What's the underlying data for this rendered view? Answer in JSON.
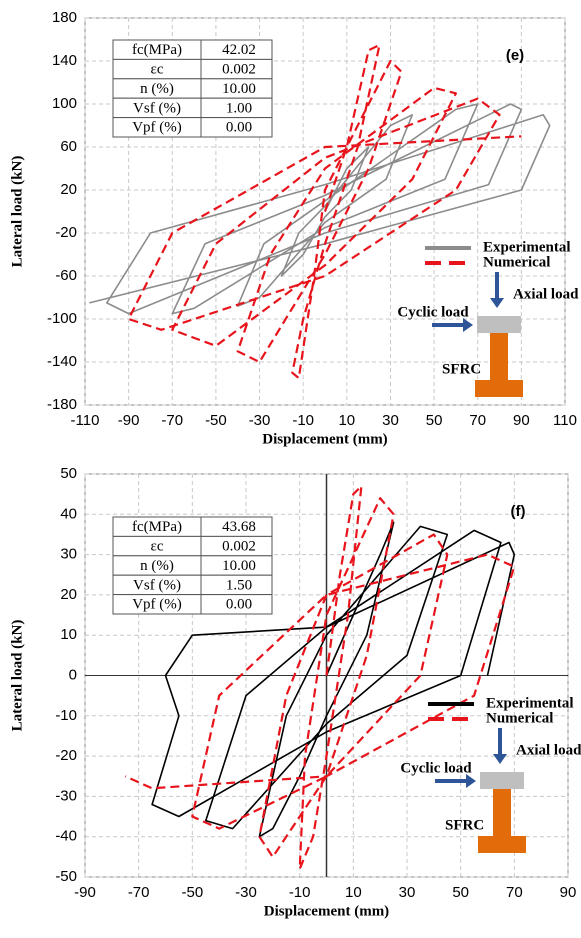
{
  "chart_data": [
    {
      "type": "line",
      "annotation": "(e)",
      "xlabel": "Displacement (mm)",
      "ylabel": "Lateral load (kN)",
      "xlim": [
        -110,
        110
      ],
      "xticks": [
        -110,
        -90,
        -70,
        -50,
        -30,
        -10,
        10,
        30,
        50,
        70,
        90,
        110
      ],
      "ylim": [
        -180,
        180
      ],
      "yticks": [
        -180,
        -140,
        -100,
        -60,
        -20,
        20,
        60,
        100,
        140,
        180
      ],
      "grid": true,
      "zero_lines": false,
      "table": {
        "rows": [
          [
            "fc(MPa)",
            "42.02"
          ],
          [
            "εc",
            "0.002"
          ],
          [
            "n (%)",
            "10.00"
          ],
          [
            "Vsf (%)",
            "1.00"
          ],
          [
            "Vpf (%)",
            "0.00"
          ]
        ]
      },
      "diagram_labels": {
        "cyclic": "Cyclic load",
        "axial": "Axial load",
        "member": "SFRC"
      },
      "series": [
        {
          "name": "Experimental",
          "color": "#8c8c8c",
          "dashed": false,
          "x": [
            0,
            10,
            20,
            12,
            0,
            -10,
            -20,
            -12,
            0,
            30,
            40,
            28,
            0,
            -30,
            -40,
            -28,
            0,
            60,
            70,
            55,
            0,
            -60,
            -70,
            -55,
            0,
            85,
            90,
            75,
            0,
            -90,
            -100,
            -80,
            0,
            100,
            103,
            90,
            0,
            -108
          ],
          "values": [
            0,
            40,
            60,
            20,
            -5,
            -40,
            -60,
            -20,
            5,
            80,
            90,
            30,
            -10,
            -80,
            -88,
            -30,
            10,
            95,
            100,
            30,
            -15,
            -90,
            -95,
            -30,
            15,
            100,
            95,
            25,
            -20,
            -95,
            -85,
            -20,
            25,
            90,
            80,
            20,
            -30,
            -85
          ]
        },
        {
          "name": "Numerical",
          "color": "#e8141c",
          "dashed": true,
          "x": [
            0,
            10,
            20,
            25,
            15,
            0,
            -10,
            -15,
            -12,
            -5,
            0,
            30,
            35,
            20,
            0,
            -30,
            -40,
            -25,
            0,
            50,
            60,
            40,
            0,
            -50,
            -70,
            -50,
            0,
            70,
            80,
            60,
            0,
            -75,
            -90,
            -70,
            0,
            90
          ],
          "values": [
            0,
            60,
            150,
            155,
            60,
            -30,
            -100,
            -150,
            -155,
            -60,
            20,
            140,
            130,
            40,
            -40,
            -140,
            -130,
            -40,
            40,
            115,
            110,
            30,
            -50,
            -125,
            -110,
            -30,
            50,
            105,
            90,
            20,
            -60,
            -110,
            -100,
            -20,
            60,
            70
          ]
        }
      ]
    },
    {
      "type": "line",
      "annotation": "(f)",
      "xlabel": "Displacement (mm)",
      "ylabel": "Lateral load (kN)",
      "xlim": [
        -90,
        90
      ],
      "xticks": [
        -90,
        -70,
        -50,
        -30,
        -10,
        10,
        30,
        50,
        70,
        90
      ],
      "ylim": [
        -50,
        50
      ],
      "yticks": [
        -50,
        -40,
        -30,
        -20,
        -10,
        0,
        10,
        20,
        30,
        40,
        50
      ],
      "grid": true,
      "zero_lines": true,
      "table": {
        "rows": [
          [
            "fc(MPa)",
            "43.68"
          ],
          [
            "εc",
            "0.002"
          ],
          [
            "n (%)",
            "10.00"
          ],
          [
            "Vsf (%)",
            "1.50"
          ],
          [
            "Vpf (%)",
            "0.00"
          ]
        ]
      },
      "diagram_labels": {
        "cyclic": "Cyclic load",
        "axial": "Axial load",
        "member": "SFRC"
      },
      "series": [
        {
          "name": "Experimental",
          "color": "#000000",
          "dashed": false,
          "x": [
            0,
            10,
            20,
            25,
            15,
            0,
            -10,
            -20,
            -25,
            -15,
            0,
            35,
            45,
            30,
            0,
            -35,
            -45,
            -30,
            0,
            55,
            65,
            50,
            0,
            -55,
            -65,
            -55,
            -60,
            -50,
            0,
            68,
            70,
            60
          ],
          "values": [
            0,
            15,
            30,
            38,
            10,
            -10,
            -25,
            -38,
            -40,
            -10,
            10,
            37,
            35,
            5,
            -12,
            -38,
            -36,
            -5,
            12,
            36,
            33,
            0,
            -14,
            -35,
            -32,
            -10,
            0,
            10,
            12,
            33,
            30,
            0
          ]
        },
        {
          "name": "Numerical",
          "color": "#e8141c",
          "dashed": true,
          "x": [
            0,
            5,
            10,
            13,
            8,
            0,
            -5,
            -10,
            -8,
            0,
            20,
            25,
            15,
            0,
            -20,
            -25,
            -15,
            0,
            40,
            45,
            35,
            0,
            -40,
            -50,
            -40,
            0,
            60,
            70,
            55,
            0,
            -65,
            -75
          ],
          "values": [
            0,
            25,
            45,
            47,
            15,
            -20,
            -40,
            -48,
            -20,
            15,
            44,
            40,
            5,
            -25,
            -45,
            -40,
            -5,
            20,
            35,
            30,
            0,
            -25,
            -38,
            -35,
            -5,
            20,
            30,
            27,
            -5,
            -25,
            -28,
            -25
          ]
        }
      ]
    }
  ]
}
